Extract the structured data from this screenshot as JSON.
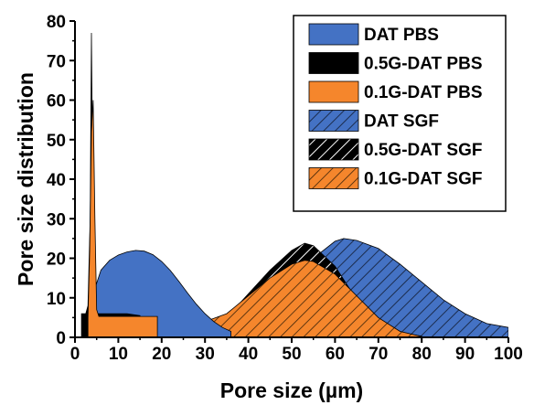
{
  "chart_data": {
    "type": "area",
    "xlabel": "Pore size (µm)",
    "ylabel": "Pore size distribution",
    "xlim": [
      0,
      100
    ],
    "ylim": [
      0,
      80
    ],
    "x_ticks": [
      "0",
      "10",
      "20",
      "30",
      "40",
      "50",
      "60",
      "70",
      "80",
      "90",
      "100"
    ],
    "y_ticks": [
      "0",
      "10",
      "20",
      "30",
      "40",
      "50",
      "60",
      "70",
      "80"
    ],
    "legend_position": "top-right",
    "series": [
      {
        "name": "DAT PBS",
        "color": "#4472c4",
        "fill": "solid",
        "x": [
          4,
          4.5,
          6,
          8,
          10,
          12,
          14,
          16,
          18,
          20,
          22,
          24,
          26,
          28,
          30,
          32,
          34,
          36
        ],
        "y": [
          5,
          12,
          17,
          19.5,
          20.8,
          21.6,
          22,
          21.8,
          20.9,
          19.2,
          16.9,
          14.1,
          11.2,
          8.4,
          6.0,
          4.0,
          2.5,
          1.5
        ]
      },
      {
        "name": "0.5G-DAT PBS",
        "color": "#000000",
        "fill": "solid",
        "x": [
          1.5,
          2.5,
          3,
          3.5,
          3.8,
          4.1,
          4.4,
          5,
          6,
          8,
          10,
          12,
          15
        ],
        "y": [
          6,
          6,
          8,
          30,
          77,
          40,
          10,
          6,
          6,
          6,
          6,
          6,
          5.5
        ]
      },
      {
        "name": "0.1G-DAT PBS",
        "color": "#f5862c",
        "fill": "solid",
        "x": [
          3,
          3.4,
          3.8,
          4.2,
          4.6,
          5,
          5.5,
          8,
          12,
          16,
          19
        ],
        "y": [
          5,
          22,
          52,
          60,
          30,
          7,
          5.3,
          5.3,
          5.3,
          5.3,
          5.3
        ]
      },
      {
        "name": "DAT SGF",
        "color": "#4472c4",
        "fill": "hatched",
        "x": [
          30,
          35,
          40,
          45,
          50,
          55,
          60,
          62,
          65,
          70,
          75,
          80,
          85,
          90,
          95,
          100
        ],
        "y": [
          0.5,
          2,
          5,
          9,
          14.5,
          20,
          24.3,
          25,
          24.5,
          22.5,
          18.5,
          14,
          9.5,
          6,
          3.5,
          2.5
        ]
      },
      {
        "name": "0.5G-DAT SGF",
        "color": "#000000",
        "fill": "hatched",
        "x": [
          25,
          30,
          35,
          40,
          45,
          50,
          53,
          55,
          60,
          65,
          70,
          75,
          80
        ],
        "y": [
          0.5,
          2,
          5,
          11,
          17,
          22,
          23.8,
          23.2,
          18,
          9.5,
          3.5,
          1.2,
          0.3
        ]
      },
      {
        "name": "0.1G-DAT SGF",
        "color": "#f5862c",
        "fill": "hatched",
        "x": [
          25,
          27,
          30,
          35,
          40,
          45,
          50,
          53,
          55,
          60,
          65,
          70,
          75,
          80
        ],
        "y": [
          0,
          3,
          4,
          6,
          10.5,
          15,
          18.5,
          19.5,
          19.2,
          16,
          10.5,
          5,
          1.5,
          0.2
        ]
      }
    ]
  }
}
